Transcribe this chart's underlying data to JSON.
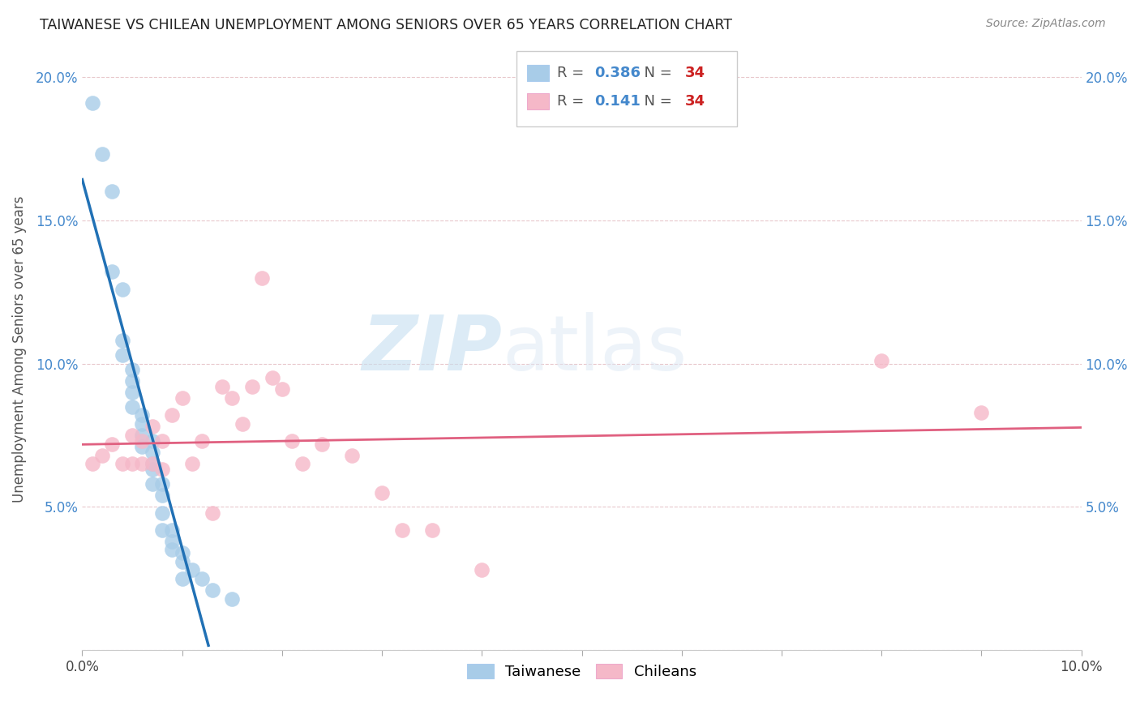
{
  "title": "TAIWANESE VS CHILEAN UNEMPLOYMENT AMONG SENIORS OVER 65 YEARS CORRELATION CHART",
  "source": "Source: ZipAtlas.com",
  "ylabel": "Unemployment Among Seniors over 65 years",
  "xlim": [
    0.0,
    0.1
  ],
  "ylim": [
    0.0,
    0.21
  ],
  "xticks": [
    0.0,
    0.01,
    0.02,
    0.03,
    0.04,
    0.05,
    0.06,
    0.07,
    0.08,
    0.09,
    0.1
  ],
  "xticklabels": [
    "0.0%",
    "",
    "",
    "",
    "",
    "",
    "",
    "",
    "",
    "",
    "10.0%"
  ],
  "yticks": [
    0.0,
    0.05,
    0.1,
    0.15,
    0.2
  ],
  "yticklabels": [
    "",
    "5.0%",
    "10.0%",
    "15.0%",
    "20.0%"
  ],
  "taiwan_R": "0.386",
  "taiwan_N": "34",
  "chile_R": "0.141",
  "chile_N": "34",
  "taiwan_color": "#a8cce8",
  "chile_color": "#f5b8c8",
  "taiwan_line_color": "#2171b5",
  "chile_line_color": "#e06080",
  "watermark_zip": "ZIP",
  "watermark_atlas": "atlas",
  "background_color": "#ffffff",
  "taiwan_x": [
    0.001,
    0.002,
    0.003,
    0.003,
    0.004,
    0.004,
    0.004,
    0.005,
    0.005,
    0.005,
    0.005,
    0.006,
    0.006,
    0.006,
    0.006,
    0.007,
    0.007,
    0.007,
    0.007,
    0.007,
    0.008,
    0.008,
    0.008,
    0.008,
    0.009,
    0.009,
    0.009,
    0.01,
    0.01,
    0.01,
    0.011,
    0.012,
    0.013,
    0.015
  ],
  "taiwan_y": [
    0.191,
    0.173,
    0.16,
    0.132,
    0.126,
    0.108,
    0.103,
    0.098,
    0.094,
    0.09,
    0.085,
    0.082,
    0.079,
    0.075,
    0.071,
    0.073,
    0.069,
    0.065,
    0.063,
    0.058,
    0.058,
    0.054,
    0.048,
    0.042,
    0.042,
    0.038,
    0.035,
    0.034,
    0.031,
    0.025,
    0.028,
    0.025,
    0.021,
    0.018
  ],
  "chile_x": [
    0.001,
    0.002,
    0.003,
    0.004,
    0.005,
    0.005,
    0.006,
    0.006,
    0.007,
    0.007,
    0.008,
    0.008,
    0.009,
    0.01,
    0.011,
    0.012,
    0.013,
    0.014,
    0.015,
    0.016,
    0.017,
    0.018,
    0.019,
    0.02,
    0.021,
    0.022,
    0.024,
    0.027,
    0.03,
    0.032,
    0.035,
    0.04,
    0.08,
    0.09
  ],
  "chile_y": [
    0.065,
    0.068,
    0.072,
    0.065,
    0.075,
    0.065,
    0.073,
    0.065,
    0.078,
    0.065,
    0.073,
    0.063,
    0.082,
    0.088,
    0.065,
    0.073,
    0.048,
    0.092,
    0.088,
    0.079,
    0.092,
    0.13,
    0.095,
    0.091,
    0.073,
    0.065,
    0.072,
    0.068,
    0.055,
    0.042,
    0.042,
    0.028,
    0.101,
    0.083
  ]
}
